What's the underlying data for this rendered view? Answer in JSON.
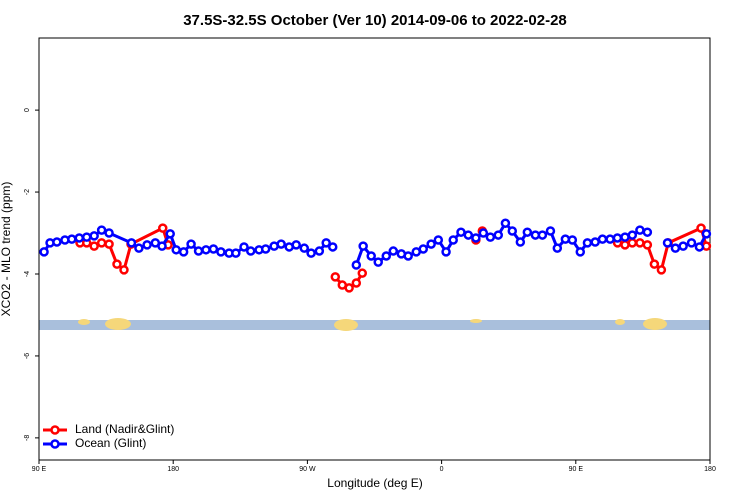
{
  "chart_data": {
    "type": "line",
    "title": "37.5S-32.5S October (Ver 10)   2014-09-06 to 2022-02-28",
    "x_label": "Longitude (deg E)",
    "y_label": "XCO2 - MLO trend (ppm)",
    "xlim": [
      90,
      540
    ],
    "ylim": [
      -8.54,
      1.76
    ],
    "xticks": [
      {
        "value": 90,
        "label": "90 E"
      },
      180,
      {
        "value": 270,
        "label": "90 W"
      },
      {
        "value": 360,
        "label": "0"
      },
      {
        "value": 450,
        "label": "90 E"
      },
      {
        "value": 540,
        "label": "180"
      }
    ],
    "yticks": [
      0,
      -2,
      -4,
      -6,
      -8
    ],
    "legend": "bottomleft",
    "series": [
      {
        "name": "Land (Nadir&Glint)",
        "color": "#ff0000",
        "x": [
          117.5,
          122,
          127,
          132,
          137,
          142.3,
          147,
          151.7,
          173,
          176.6,
          null,
          288.7,
          293.4,
          298,
          302.8,
          306.8,
          null,
          383,
          387.3,
          null,
          478,
          483,
          487.9,
          493,
          498,
          502.7,
          507.4,
          512,
          534,
          537.6
        ],
        "values": [
          -3.24,
          -3.24,
          -3.32,
          -3.24,
          -3.27,
          -3.76,
          -3.9,
          -3.27,
          -2.88,
          -3.29,
          null,
          -4.07,
          -4.27,
          -4.34,
          -4.22,
          -3.98,
          null,
          -3.17,
          -2.95,
          null,
          -3.24,
          -3.29,
          -3.24,
          -3.24,
          -3.29,
          -3.76,
          -3.9,
          -3.24,
          -2.88,
          -3.32
        ]
      },
      {
        "name": "Ocean (Glint)",
        "color": "#0000ff",
        "x": [
          93.4,
          97.4,
          102,
          107.4,
          112,
          117,
          122,
          127,
          132,
          137,
          152,
          157,
          162.5,
          168,
          172.5,
          178,
          182,
          187,
          192,
          197,
          202,
          207,
          212,
          217.5,
          222,
          227.5,
          232,
          237.6,
          242,
          247.7,
          252.4,
          257.8,
          262.5,
          267.9,
          272.5,
          278,
          282.6,
          287,
          null,
          302.8,
          307.4,
          312.8,
          317.5,
          322.9,
          327.6,
          333,
          337.6,
          343,
          347.7,
          353,
          357.8,
          363,
          367.8,
          373,
          377.9,
          383,
          388,
          392.7,
          398,
          402.8,
          407.4,
          412.8,
          417.5,
          422.9,
          427.6,
          433,
          437.6,
          443,
          447.7,
          453,
          457.8,
          463,
          467.9,
          473,
          477.9,
          483,
          487.9,
          493,
          498,
          null,
          511.5,
          516.8,
          522,
          527.6,
          532.9,
          537.6
        ],
        "values": [
          -3.46,
          -3.24,
          -3.22,
          -3.17,
          -3.15,
          -3.12,
          -3.1,
          -3.07,
          -2.93,
          -3.0,
          -3.24,
          -3.37,
          -3.29,
          -3.24,
          -3.32,
          -3.02,
          -3.41,
          -3.46,
          -3.27,
          -3.44,
          -3.41,
          -3.39,
          -3.46,
          -3.49,
          -3.49,
          -3.34,
          -3.44,
          -3.41,
          -3.39,
          -3.32,
          -3.27,
          -3.34,
          -3.29,
          -3.37,
          -3.49,
          -3.44,
          -3.24,
          -3.34,
          null,
          -3.78,
          -3.32,
          -3.56,
          -3.71,
          -3.56,
          -3.44,
          -3.51,
          -3.56,
          -3.46,
          -3.39,
          -3.27,
          -3.17,
          -3.46,
          -3.17,
          -2.98,
          -3.05,
          -3.12,
          -3.0,
          -3.1,
          -3.05,
          -2.76,
          -2.95,
          -3.22,
          -2.98,
          -3.05,
          -3.05,
          -2.95,
          -3.37,
          -3.15,
          -3.17,
          -3.46,
          -3.24,
          -3.22,
          -3.15,
          -3.15,
          -3.12,
          -3.1,
          -3.05,
          -2.93,
          -2.98,
          null,
          -3.24,
          -3.37,
          -3.32,
          -3.24,
          -3.34,
          -3.02
        ]
      }
    ]
  }
}
